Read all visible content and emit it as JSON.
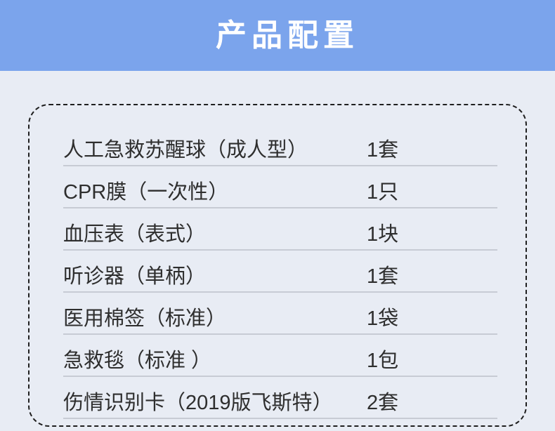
{
  "page": {
    "title": "产品配置"
  },
  "theme": {
    "header_bg": "#7BA4EC",
    "page_bg": "#E8ECF4",
    "title_color": "#FFFFFF",
    "text_color": "#2E2E2E",
    "row_divider_color": "#C7CBD4",
    "card_border_color": "#1F1F1F"
  },
  "card": {
    "items": [
      {
        "name": "人工急救苏醒球（成人型）",
        "qty": "1套"
      },
      {
        "name": "CPR膜（一次性）",
        "qty": "1只"
      },
      {
        "name": "血压表（表式）",
        "qty": "1块"
      },
      {
        "name": "听诊器（单柄）",
        "qty": "1套"
      },
      {
        "name": "医用棉签（标准）",
        "qty": "1袋"
      },
      {
        "name": "急救毯（标准 ）",
        "qty": "1包"
      },
      {
        "name": "伤情识别卡（2019版飞斯特）",
        "qty": "2套"
      }
    ]
  }
}
